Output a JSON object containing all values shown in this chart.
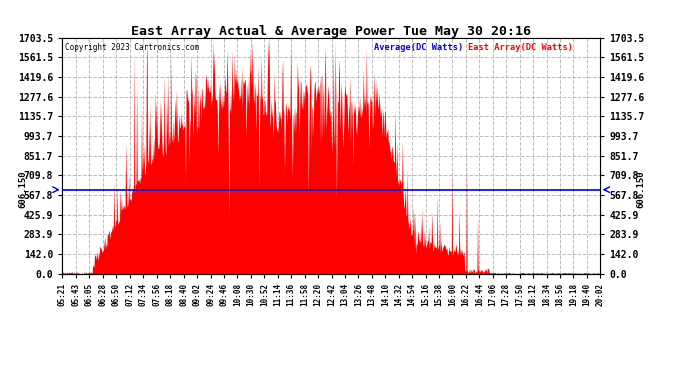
{
  "title": "East Array Actual & Average Power Tue May 30 20:16",
  "copyright": "Copyright 2023 Cartronics.com",
  "legend_avg": "Average(DC Watts)",
  "legend_east": "East Array(DC Watts)",
  "avg_value": 606.15,
  "yticks": [
    0.0,
    142.0,
    283.9,
    425.9,
    567.8,
    709.8,
    851.7,
    993.7,
    1135.7,
    1277.6,
    1419.6,
    1561.5,
    1703.5
  ],
  "ymax": 1703.5,
  "bg_color": "#ffffff",
  "grid_color": "#bbbbbb",
  "fill_color": "#ff0000",
  "avg_line_color": "#0000dd",
  "xtick_labels": [
    "05:21",
    "05:43",
    "06:05",
    "06:28",
    "06:50",
    "07:12",
    "07:34",
    "07:56",
    "08:18",
    "08:40",
    "09:02",
    "09:24",
    "09:46",
    "10:08",
    "10:30",
    "10:52",
    "11:14",
    "11:36",
    "11:58",
    "12:20",
    "12:42",
    "13:04",
    "13:26",
    "13:48",
    "14:10",
    "14:32",
    "14:54",
    "15:16",
    "15:38",
    "16:00",
    "16:22",
    "16:44",
    "17:06",
    "17:28",
    "17:50",
    "18:12",
    "18:34",
    "18:56",
    "19:18",
    "19:40",
    "20:02"
  ],
  "label_606": "606.150"
}
